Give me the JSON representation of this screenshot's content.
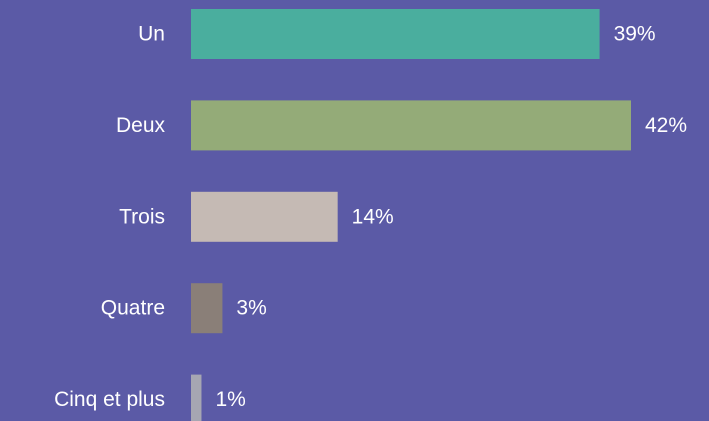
{
  "chart_data": {
    "type": "bar",
    "orientation": "horizontal",
    "categories": [
      "Un",
      "Deux",
      "Trois",
      "Quatre",
      "Cinq et plus"
    ],
    "values": [
      39,
      42,
      14,
      3,
      1
    ],
    "value_labels": [
      "39%",
      "42%",
      "14%",
      "3%",
      "1%"
    ],
    "colors": [
      "#4aae9e",
      "#94ab78",
      "#c5bab4",
      "#8a7f78",
      "#a6a6b2"
    ],
    "background": "#5b5aa6"
  }
}
